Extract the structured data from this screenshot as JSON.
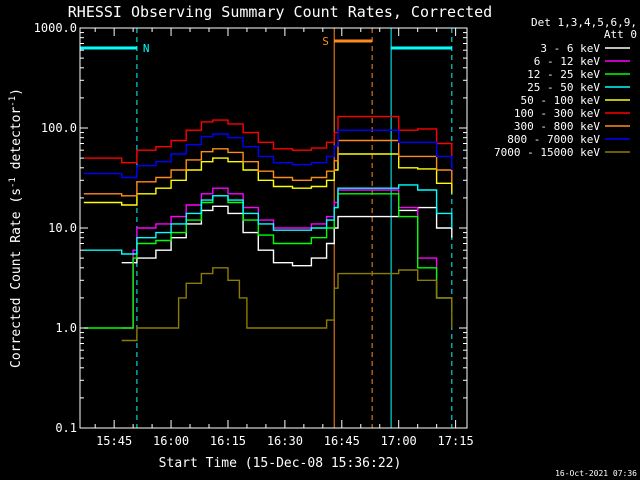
{
  "chart_data": {
    "type": "line",
    "title": "RHESSI Observing Summary Count Rates, Corrected",
    "ylabel": "Corrected Count Rate (s",
    "ylabel_sup": "-1",
    "ylabel_mid": " detector",
    "ylabel_end": ")",
    "xlabel": "Start Time (15-Dec-08 15:36:22)",
    "y_scale": "log",
    "ylim": [
      0.1,
      1000
    ],
    "y_ticks": [
      {
        "value": 0.1,
        "label": "0.1"
      },
      {
        "value": 1,
        "label": "1.0"
      },
      {
        "value": 10,
        "label": "10.0"
      },
      {
        "value": 100,
        "label": "100.0"
      },
      {
        "value": 1000,
        "label": "1000.0"
      }
    ],
    "xlim": [
      "15:36",
      "17:18"
    ],
    "x_ticks": [
      {
        "value": "15:45",
        "label": "15:45"
      },
      {
        "value": "16:00",
        "label": "16:00"
      },
      {
        "value": "16:15",
        "label": "16:15"
      },
      {
        "value": "16:30",
        "label": "16:30"
      },
      {
        "value": "16:45",
        "label": "16:45"
      },
      {
        "value": "17:00",
        "label": "17:00"
      },
      {
        "value": "17:15",
        "label": "17:15"
      }
    ],
    "legend_header": [
      "Det 1,3,4,5,6,9,",
      "Att 0"
    ],
    "legend_position": "right",
    "flags": [
      {
        "label": "N",
        "color": "#00ffff",
        "start": "15:36",
        "end": "15:51"
      },
      {
        "label": "",
        "color": "#00ffff",
        "start": "16:58",
        "end": "17:14"
      },
      {
        "label": "S",
        "color": "#ff8c1a",
        "start": "16:43",
        "end": "16:53"
      }
    ],
    "markers": [
      {
        "time": "15:36",
        "color": "#00ffff",
        "style": "solid"
      },
      {
        "time": "15:51",
        "color": "#00ffff",
        "style": "dashed"
      },
      {
        "time": "16:43",
        "color": "#ff8c1a",
        "style": "solid"
      },
      {
        "time": "16:53",
        "color": "#ff8c1a",
        "style": "dashed"
      },
      {
        "time": "16:58",
        "color": "#00ffff",
        "style": "solid"
      },
      {
        "time": "17:14",
        "color": "#00ffff",
        "style": "dashed"
      }
    ],
    "series": [
      {
        "name": "3 - 6 keV",
        "color": "#ffffff",
        "points": [
          [
            "15:47",
            4.5
          ],
          [
            "15:51",
            5
          ],
          [
            "15:56",
            6
          ],
          [
            "16:00",
            8
          ],
          [
            "16:04",
            11
          ],
          [
            "16:08",
            15
          ],
          [
            "16:11",
            16.5
          ],
          [
            "16:15",
            14
          ],
          [
            "16:19",
            9
          ],
          [
            "16:23",
            6
          ],
          [
            "16:27",
            4.5
          ],
          [
            "16:32",
            4.2
          ],
          [
            "16:37",
            5
          ],
          [
            "16:41",
            7
          ],
          [
            "16:43",
            10
          ],
          [
            "16:44",
            13
          ],
          [
            "17:00",
            15
          ],
          [
            "17:05",
            16
          ],
          [
            "17:10",
            10
          ],
          [
            "17:14",
            8
          ]
        ]
      },
      {
        "name": "6 - 12 keV",
        "color": "#ff00ff",
        "points": [
          [
            "15:47",
            1.0
          ],
          [
            "15:50",
            6
          ],
          [
            "15:51",
            10
          ],
          [
            "15:56",
            11
          ],
          [
            "16:00",
            13
          ],
          [
            "16:04",
            17
          ],
          [
            "16:08",
            22
          ],
          [
            "16:11",
            25
          ],
          [
            "16:15",
            22
          ],
          [
            "16:19",
            16
          ],
          [
            "16:23",
            12
          ],
          [
            "16:27",
            10
          ],
          [
            "16:32",
            10
          ],
          [
            "16:37",
            11
          ],
          [
            "16:41",
            13
          ],
          [
            "16:43",
            18
          ],
          [
            "16:44",
            24
          ],
          [
            "17:00",
            16
          ],
          [
            "17:05",
            5
          ],
          [
            "17:10",
            2
          ],
          [
            "17:14",
            1.5
          ]
        ]
      },
      {
        "name": "12 - 25 keV",
        "color": "#00ff00",
        "points": [
          [
            "15:37",
            1.0
          ],
          [
            "15:47",
            1.0
          ],
          [
            "15:50",
            5
          ],
          [
            "15:51",
            7
          ],
          [
            "15:56",
            7.5
          ],
          [
            "16:00",
            9
          ],
          [
            "16:04",
            12
          ],
          [
            "16:08",
            18
          ],
          [
            "16:11",
            21
          ],
          [
            "16:15",
            18
          ],
          [
            "16:19",
            12
          ],
          [
            "16:23",
            8.5
          ],
          [
            "16:27",
            7
          ],
          [
            "16:32",
            7
          ],
          [
            "16:37",
            8
          ],
          [
            "16:41",
            10
          ],
          [
            "16:43",
            16
          ],
          [
            "16:44",
            22
          ],
          [
            "17:00",
            13
          ],
          [
            "17:05",
            4
          ],
          [
            "17:10",
            2
          ],
          [
            "17:14",
            1.5
          ]
        ]
      },
      {
        "name": "25 - 50 keV",
        "color": "#00ffff",
        "points": [
          [
            "15:37",
            6
          ],
          [
            "15:47",
            5.5
          ],
          [
            "15:51",
            8
          ],
          [
            "15:56",
            9
          ],
          [
            "16:00",
            11
          ],
          [
            "16:04",
            14
          ],
          [
            "16:08",
            19
          ],
          [
            "16:11",
            21
          ],
          [
            "16:15",
            19
          ],
          [
            "16:19",
            14
          ],
          [
            "16:23",
            11
          ],
          [
            "16:27",
            9.5
          ],
          [
            "16:32",
            9.5
          ],
          [
            "16:37",
            10
          ],
          [
            "16:41",
            12
          ],
          [
            "16:43",
            16
          ],
          [
            "16:44",
            25
          ],
          [
            "17:00",
            27
          ],
          [
            "17:05",
            24
          ],
          [
            "17:10",
            14
          ],
          [
            "17:14",
            10
          ]
        ]
      },
      {
        "name": "50 - 100 keV",
        "color": "#ffff00",
        "points": [
          [
            "15:37",
            18
          ],
          [
            "15:47",
            17
          ],
          [
            "15:51",
            22
          ],
          [
            "15:56",
            25
          ],
          [
            "16:00",
            30
          ],
          [
            "16:04",
            38
          ],
          [
            "16:08",
            46
          ],
          [
            "16:11",
            50
          ],
          [
            "16:15",
            46
          ],
          [
            "16:19",
            38
          ],
          [
            "16:23",
            30
          ],
          [
            "16:27",
            26
          ],
          [
            "16:32",
            25
          ],
          [
            "16:37",
            26
          ],
          [
            "16:41",
            30
          ],
          [
            "16:43",
            38
          ],
          [
            "16:44",
            55
          ],
          [
            "17:00",
            40
          ],
          [
            "17:05",
            39
          ],
          [
            "17:10",
            28
          ],
          [
            "17:14",
            22
          ]
        ]
      },
      {
        "name": "100 - 300 keV",
        "color": "#ff0000",
        "points": [
          [
            "15:37",
            50
          ],
          [
            "15:47",
            45
          ],
          [
            "15:51",
            60
          ],
          [
            "15:56",
            65
          ],
          [
            "16:00",
            75
          ],
          [
            "16:04",
            95
          ],
          [
            "16:08",
            115
          ],
          [
            "16:11",
            120
          ],
          [
            "16:15",
            110
          ],
          [
            "16:19",
            90
          ],
          [
            "16:23",
            72
          ],
          [
            "16:27",
            62
          ],
          [
            "16:32",
            60
          ],
          [
            "16:37",
            63
          ],
          [
            "16:41",
            72
          ],
          [
            "16:43",
            90
          ],
          [
            "16:44",
            130
          ],
          [
            "17:00",
            95
          ],
          [
            "17:05",
            98
          ],
          [
            "17:10",
            70
          ],
          [
            "17:14",
            50
          ]
        ]
      },
      {
        "name": "300 - 800 keV",
        "color": "#ff8c1a",
        "points": [
          [
            "15:37",
            22
          ],
          [
            "15:47",
            21
          ],
          [
            "15:51",
            29
          ],
          [
            "15:56",
            32
          ],
          [
            "16:00",
            38
          ],
          [
            "16:04",
            48
          ],
          [
            "16:08",
            58
          ],
          [
            "16:11",
            62
          ],
          [
            "16:15",
            57
          ],
          [
            "16:19",
            46
          ],
          [
            "16:23",
            37
          ],
          [
            "16:27",
            32
          ],
          [
            "16:32",
            30
          ],
          [
            "16:37",
            32
          ],
          [
            "16:41",
            37
          ],
          [
            "16:43",
            47
          ],
          [
            "16:44",
            75
          ],
          [
            "17:00",
            52
          ],
          [
            "17:05",
            52
          ],
          [
            "17:10",
            38
          ],
          [
            "17:14",
            28
          ]
        ]
      },
      {
        "name": "800 - 7000 keV",
        "color": "#0000ff",
        "points": [
          [
            "15:37",
            35
          ],
          [
            "15:47",
            32
          ],
          [
            "15:51",
            42
          ],
          [
            "15:56",
            46
          ],
          [
            "16:00",
            55
          ],
          [
            "16:04",
            68
          ],
          [
            "16:08",
            82
          ],
          [
            "16:11",
            87
          ],
          [
            "16:15",
            80
          ],
          [
            "16:19",
            65
          ],
          [
            "16:23",
            52
          ],
          [
            "16:27",
            45
          ],
          [
            "16:32",
            43
          ],
          [
            "16:37",
            45
          ],
          [
            "16:41",
            52
          ],
          [
            "16:43",
            66
          ],
          [
            "16:44",
            95
          ],
          [
            "17:00",
            72
          ],
          [
            "17:05",
            72
          ],
          [
            "17:10",
            52
          ],
          [
            "17:14",
            38
          ]
        ]
      },
      {
        "name": "7000 - 15000 keV",
        "color": "#8b7d00",
        "points": [
          [
            "15:47",
            0.75
          ],
          [
            "15:51",
            1.0
          ],
          [
            "15:56",
            1.0
          ],
          [
            "16:00",
            1.0
          ],
          [
            "16:02",
            2.0
          ],
          [
            "16:04",
            2.8
          ],
          [
            "16:08",
            3.5
          ],
          [
            "16:11",
            4.0
          ],
          [
            "16:15",
            3.0
          ],
          [
            "16:18",
            2.0
          ],
          [
            "16:20",
            1.0
          ],
          [
            "16:28",
            1.0
          ],
          [
            "16:38",
            1.0
          ],
          [
            "16:41",
            1.2
          ],
          [
            "16:43",
            2.5
          ],
          [
            "16:44",
            3.5
          ],
          [
            "16:58",
            3.5
          ],
          [
            "17:00",
            3.8
          ],
          [
            "17:05",
            3.0
          ],
          [
            "17:10",
            2.0
          ],
          [
            "17:14",
            1.0
          ]
        ]
      }
    ]
  },
  "timestamp": "16-Oct-2021 07:36"
}
